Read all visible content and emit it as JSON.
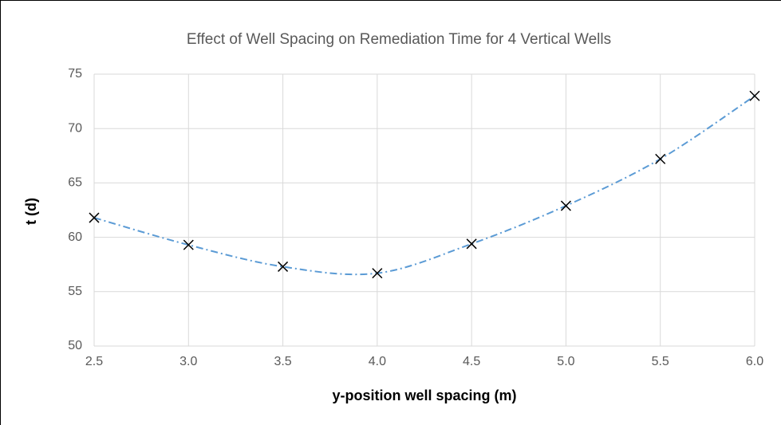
{
  "chart_data": {
    "type": "scatter",
    "title": "Effect of Well Spacing on Remediation Time for 4 Vertical Wells",
    "xlabel": "y-position well spacing (m)",
    "ylabel": "t (d)",
    "x": [
      2.5,
      3.0,
      3.5,
      4.0,
      4.5,
      5.0,
      5.5,
      6.0
    ],
    "series": [
      {
        "name": "t",
        "color": "#5b9bd5",
        "marker_color": "#000000",
        "values": [
          61.8,
          59.3,
          57.3,
          56.7,
          59.4,
          62.9,
          67.2,
          73.0
        ]
      }
    ],
    "xlim": [
      2.5,
      6.0
    ],
    "xticks": [
      2.5,
      {
        "value": 3,
        "label": "3.0"
      },
      3.5,
      {
        "value": 4,
        "label": "4.0"
      },
      4.5,
      {
        "value": 5,
        "label": "5.0"
      },
      5.5,
      {
        "value": 6,
        "label": "6.0"
      }
    ],
    "ylim": [
      50,
      75
    ],
    "yticks": [
      50,
      55,
      60,
      65,
      70,
      75
    ],
    "grid": true
  }
}
